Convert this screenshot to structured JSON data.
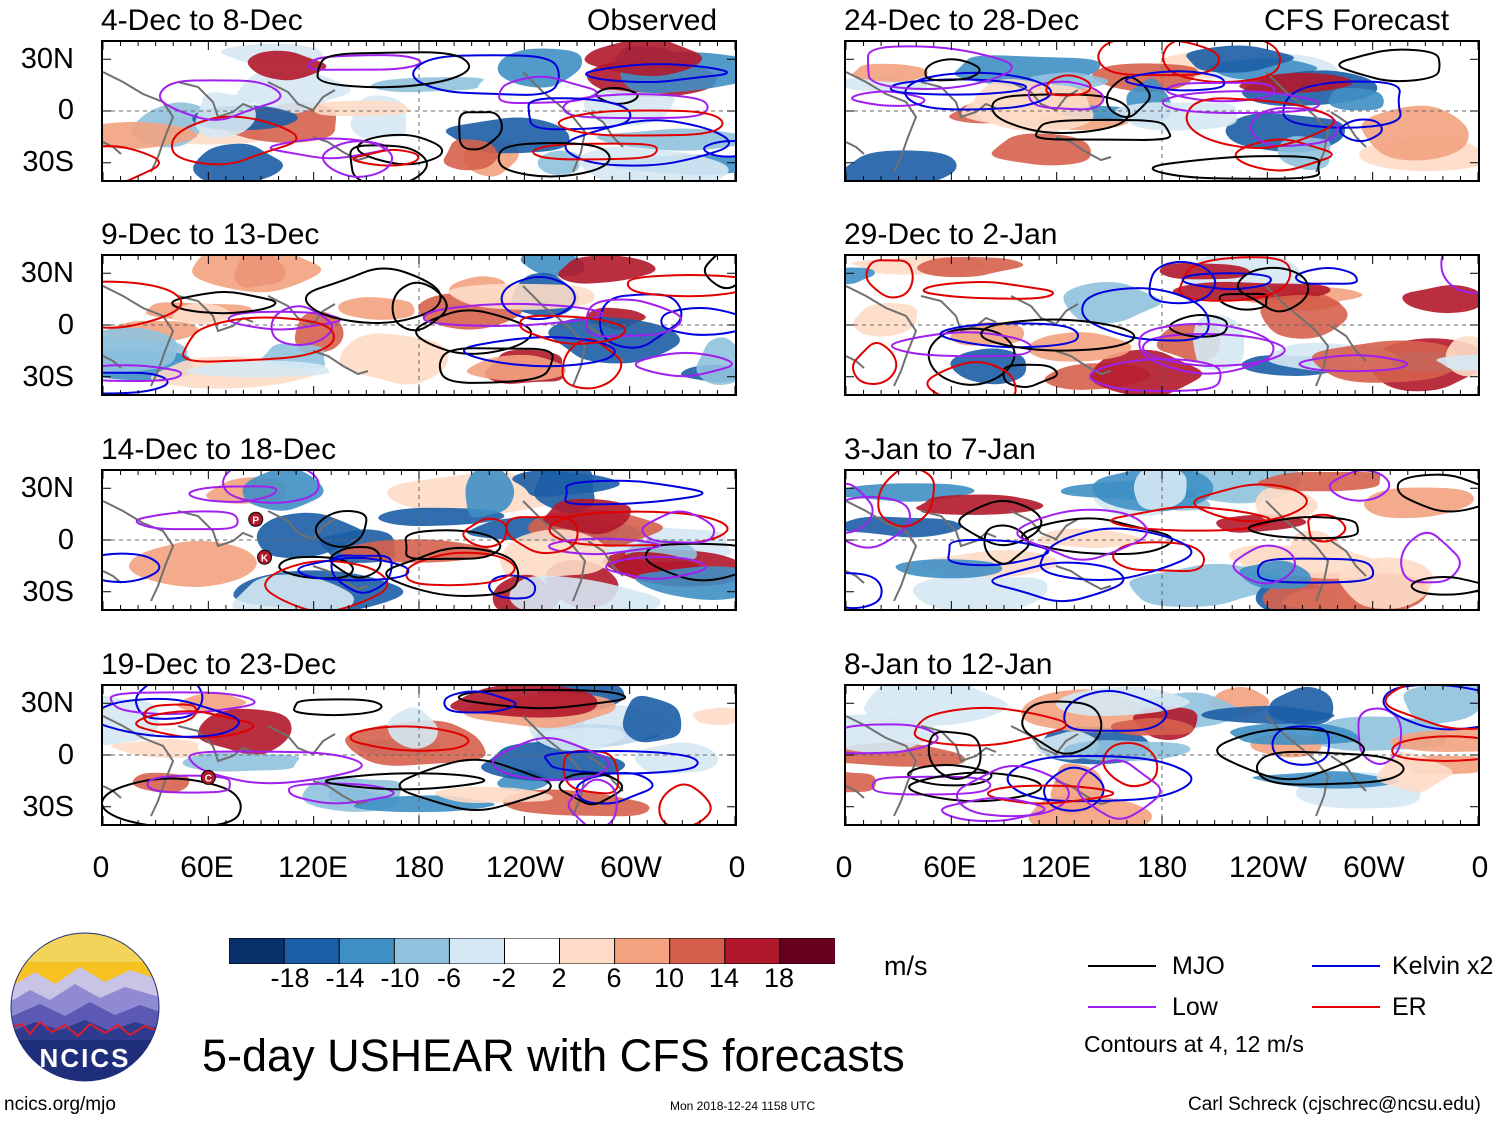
{
  "colors": {
    "mjo": "#000000",
    "low": "#a020f0",
    "kelvin": "#0000e0",
    "er": "#e00000",
    "coast": "#707070",
    "scale": [
      "#08306b",
      "#1c5ea6",
      "#3f8fc4",
      "#90c2de",
      "#d5e8f3",
      "#ffffff",
      "#fddbc7",
      "#f3a27f",
      "#d6604d",
      "#b2182b",
      "#67001f"
    ]
  },
  "left_column_header": "Observed",
  "right_column_header": "CFS Forecast",
  "lat_labels": [
    "30N",
    "0",
    "30S"
  ],
  "lon_labels": [
    "0",
    "60E",
    "120E",
    "180",
    "120W",
    "60W",
    "0"
  ],
  "panels": [
    {
      "period": "4-Dec to 8-Dec",
      "column": "left",
      "row": 0
    },
    {
      "period": "9-Dec to 13-Dec",
      "column": "left",
      "row": 1
    },
    {
      "period": "14-Dec to 18-Dec",
      "column": "left",
      "row": 2
    },
    {
      "period": "19-Dec to 23-Dec",
      "column": "left",
      "row": 3
    },
    {
      "period": "24-Dec to 28-Dec",
      "column": "right",
      "row": 0
    },
    {
      "period": "29-Dec to 2-Jan",
      "column": "right",
      "row": 1
    },
    {
      "period": "3-Jan to 7-Jan",
      "column": "right",
      "row": 2
    },
    {
      "period": "8-Jan to 12-Jan",
      "column": "right",
      "row": 3
    }
  ],
  "storm_markers": [
    {
      "panel": 2,
      "label": "P",
      "lon": 87,
      "lat": 12
    },
    {
      "panel": 2,
      "label": "K",
      "lon": 92,
      "lat": -10
    },
    {
      "panel": 3,
      "label": "C",
      "lon": 60,
      "lat": -13
    }
  ],
  "colorbar": {
    "ticks": [
      "-18",
      "-14",
      "-10",
      "-6",
      "-2",
      "2",
      "6",
      "10",
      "14",
      "18"
    ],
    "units": "m/s"
  },
  "legend": {
    "mjo": "MJO",
    "low": "Low",
    "kelvin": "Kelvin x2",
    "er": "ER",
    "note": "Contours at 4, 12 m/s"
  },
  "logo_text": "NCICS",
  "main_title": "5-day USHEAR with CFS forecasts",
  "footer": {
    "url": "ncics.org/mjo",
    "timestamp": "Mon 2018-12-24 1158 UTC",
    "credit": "Carl Schreck (cjschrec@ncsu.edu)"
  }
}
